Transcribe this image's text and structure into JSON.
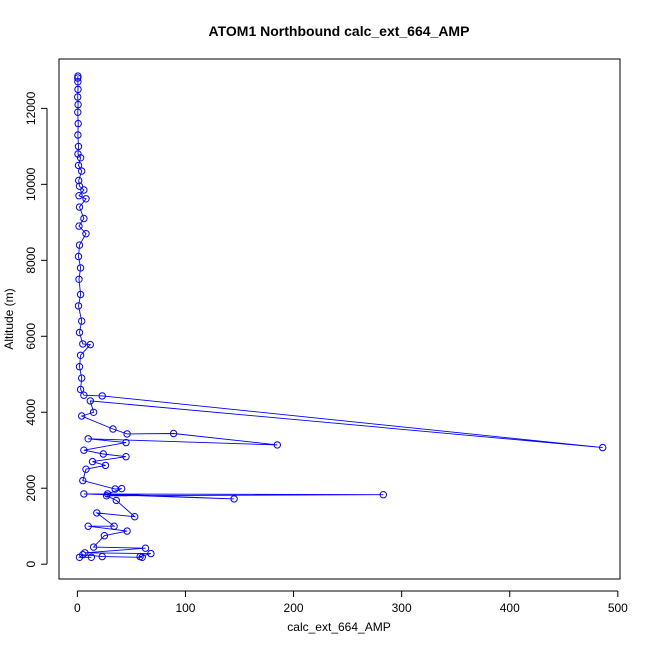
{
  "chart_data": {
    "type": "line",
    "title": "ATOM1 Northbound calc_ext_664_AMP",
    "xlabel": "calc_ext_664_AMP",
    "ylabel": "Altitude (m)",
    "xlim": [
      -17,
      502
    ],
    "ylim": [
      -390,
      13300
    ],
    "xticks": [
      0,
      100,
      200,
      300,
      400,
      500
    ],
    "yticks": [
      0,
      2000,
      4000,
      6000,
      8000,
      10000,
      12000
    ],
    "grid": false,
    "legend": "none",
    "colors": {
      "series": "#0000ff"
    },
    "series": [
      {
        "name": "",
        "points": [
          [
            0.5,
            12850
          ],
          [
            0.4,
            12800
          ],
          [
            0.5,
            12700
          ],
          [
            0.6,
            12500
          ],
          [
            0.3,
            12300
          ],
          [
            0.7,
            12100
          ],
          [
            0.4,
            11900
          ],
          [
            0.8,
            11600
          ],
          [
            0.5,
            11300
          ],
          [
            1.0,
            11000
          ],
          [
            0.6,
            10800
          ],
          [
            3.0,
            10700
          ],
          [
            1.0,
            10500
          ],
          [
            4.0,
            10350
          ],
          [
            1.2,
            10100
          ],
          [
            2.0,
            9950
          ],
          [
            6.0,
            9850
          ],
          [
            1.5,
            9700
          ],
          [
            8.0,
            9620
          ],
          [
            2.0,
            9400
          ],
          [
            6.0,
            9100
          ],
          [
            1.5,
            8900
          ],
          [
            8.0,
            8700
          ],
          [
            2.0,
            8400
          ],
          [
            1.0,
            8100
          ],
          [
            3.0,
            7800
          ],
          [
            1.5,
            7500
          ],
          [
            3.0,
            7100
          ],
          [
            1.0,
            6800
          ],
          [
            4.0,
            6400
          ],
          [
            2.0,
            6100
          ],
          [
            5.0,
            5800
          ],
          [
            12.0,
            5780
          ],
          [
            3.0,
            5500
          ],
          [
            2.0,
            5200
          ],
          [
            4.0,
            4900
          ],
          [
            3.0,
            4600
          ],
          [
            6.0,
            4450
          ],
          [
            23.0,
            4430
          ],
          [
            486.0,
            3070
          ],
          [
            12.0,
            4300
          ],
          [
            15.0,
            4000
          ],
          [
            4.0,
            3900
          ],
          [
            33.0,
            3560
          ],
          [
            46.0,
            3430
          ],
          [
            89.0,
            3440
          ],
          [
            185.0,
            3140
          ],
          [
            10.0,
            3300
          ],
          [
            45.0,
            3200
          ],
          [
            6.0,
            3000
          ],
          [
            24.0,
            2900
          ],
          [
            45.0,
            2830
          ],
          [
            14.0,
            2700
          ],
          [
            26.0,
            2600
          ],
          [
            8.0,
            2500
          ],
          [
            5.0,
            2200
          ],
          [
            35.0,
            1980
          ],
          [
            41.0,
            1990
          ],
          [
            28.0,
            1850
          ],
          [
            145.0,
            1720
          ],
          [
            6.0,
            1850
          ],
          [
            283.0,
            1830
          ],
          [
            27.0,
            1800
          ],
          [
            36.0,
            1680
          ],
          [
            53.0,
            1250
          ],
          [
            18.0,
            1350
          ],
          [
            34.0,
            1000
          ],
          [
            10.0,
            1000
          ],
          [
            46.0,
            870
          ],
          [
            25.0,
            750
          ],
          [
            15.0,
            450
          ],
          [
            63.0,
            420
          ],
          [
            7.0,
            300
          ],
          [
            68.0,
            280
          ],
          [
            58.0,
            200
          ],
          [
            60.0,
            180
          ],
          [
            23.0,
            200
          ],
          [
            5.0,
            250
          ],
          [
            2.0,
            180
          ],
          [
            13.0,
            180
          ]
        ]
      }
    ]
  }
}
